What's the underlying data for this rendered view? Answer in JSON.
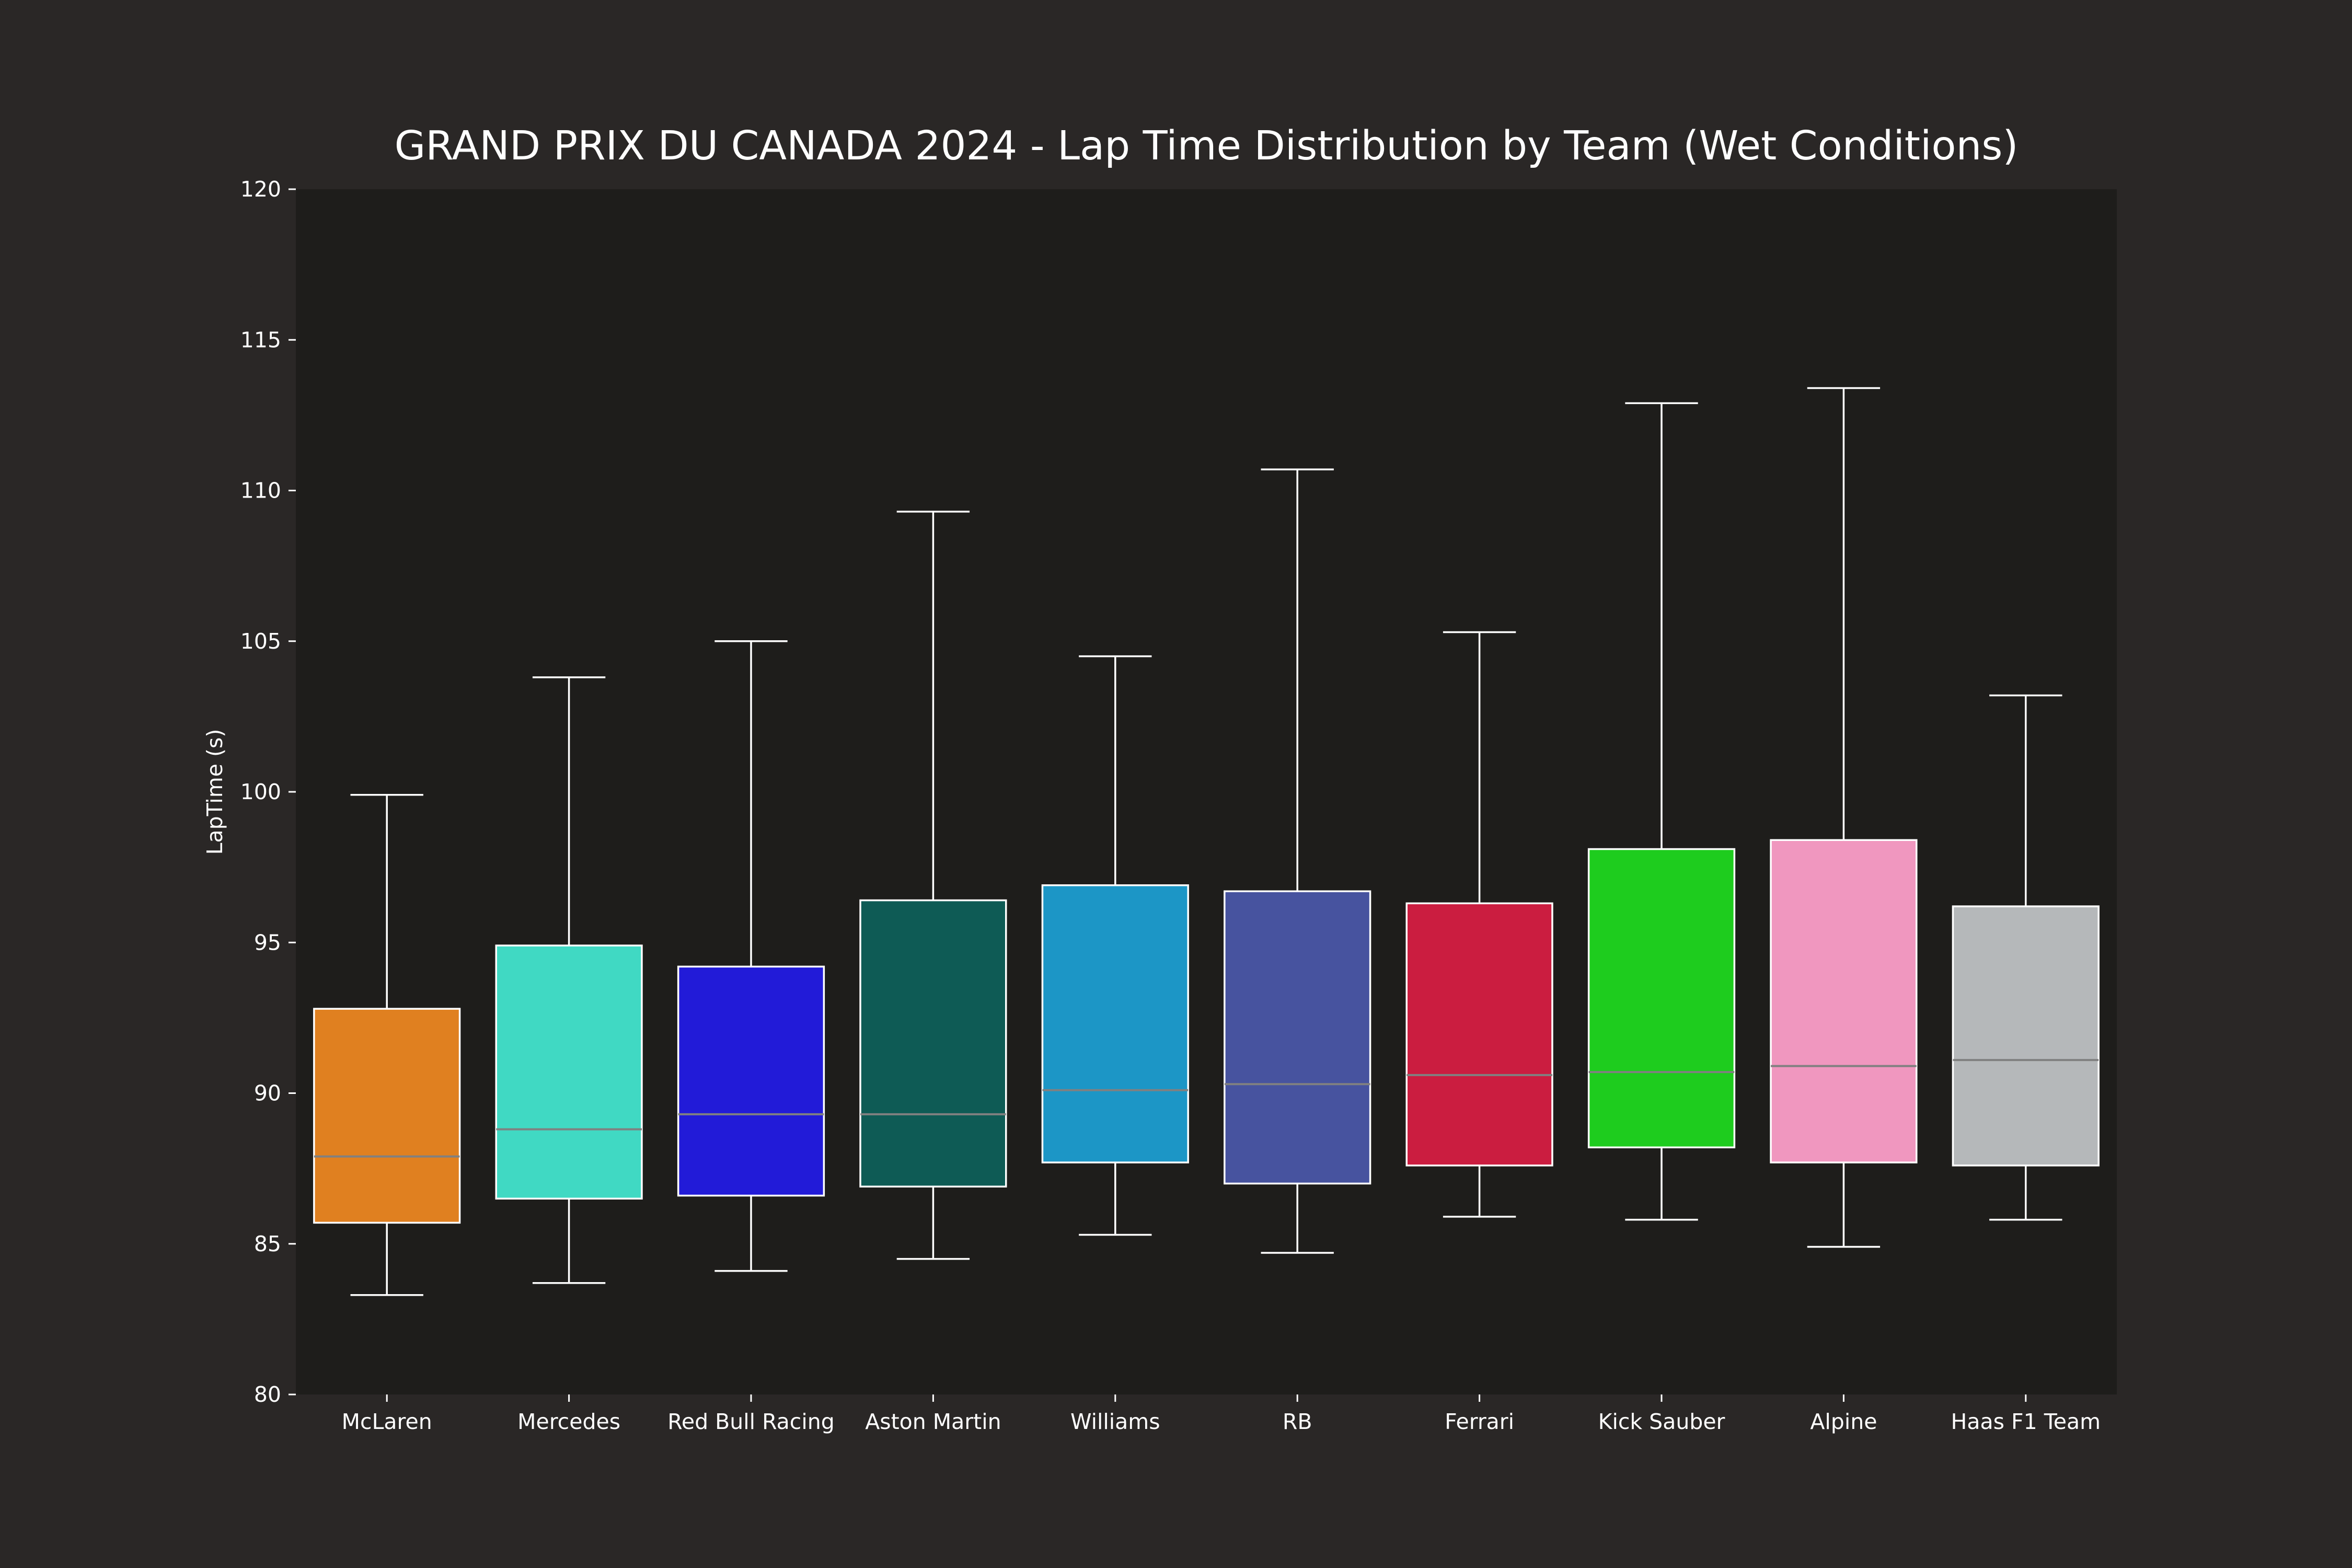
{
  "chart_data": {
    "type": "box",
    "title": "GRAND PRIX DU CANADA 2024 - Lap Time Distribution by Team (Wet Conditions)",
    "xlabel": "",
    "ylabel": "LapTime (s)",
    "ylim": [
      80,
      120
    ],
    "yticks": [
      80,
      85,
      90,
      95,
      100,
      105,
      110,
      115,
      120
    ],
    "grid": false,
    "categories": [
      "McLaren",
      "Mercedes",
      "Red Bull Racing",
      "Aston Martin",
      "Williams",
      "RB",
      "Ferrari",
      "Kick Sauber",
      "Alpine",
      "Haas F1 Team"
    ],
    "boxes": [
      {
        "team": "McLaren",
        "color": "#e08020",
        "whislo": 83.3,
        "q1": 85.7,
        "med": 87.9,
        "q3": 92.8,
        "whishi": 99.9
      },
      {
        "team": "Mercedes",
        "color": "#40d9c3",
        "whislo": 83.7,
        "q1": 86.5,
        "med": 88.8,
        "q3": 94.9,
        "whishi": 103.8
      },
      {
        "team": "Red Bull Racing",
        "color": "#221bd8",
        "whislo": 84.1,
        "q1": 86.6,
        "med": 89.3,
        "q3": 94.2,
        "whishi": 105.0
      },
      {
        "team": "Aston Martin",
        "color": "#0e5b55",
        "whislo": 84.5,
        "q1": 86.9,
        "med": 89.3,
        "q3": 96.4,
        "whishi": 109.3
      },
      {
        "team": "Williams",
        "color": "#1c96c6",
        "whislo": 85.3,
        "q1": 87.7,
        "med": 90.1,
        "q3": 96.9,
        "whishi": 104.5
      },
      {
        "team": "RB",
        "color": "#47539f",
        "whislo": 84.7,
        "q1": 87.0,
        "med": 90.3,
        "q3": 96.7,
        "whishi": 110.7
      },
      {
        "team": "Ferrari",
        "color": "#cb1d40",
        "whislo": 85.9,
        "q1": 87.6,
        "med": 90.6,
        "q3": 96.3,
        "whishi": 105.3
      },
      {
        "team": "Kick Sauber",
        "color": "#1ecc1e",
        "whislo": 85.8,
        "q1": 88.2,
        "med": 90.7,
        "q3": 98.1,
        "whishi": 112.9
      },
      {
        "team": "Alpine",
        "color": "#f097bf",
        "whislo": 84.9,
        "q1": 87.7,
        "med": 90.9,
        "q3": 98.4,
        "whishi": 113.4
      },
      {
        "team": "Haas F1 Team",
        "color": "#b5b8ba",
        "whislo": 85.8,
        "q1": 87.6,
        "med": 91.1,
        "q3": 96.2,
        "whishi": 103.2
      }
    ],
    "colors": {
      "figure_background": "#2a2726",
      "plot_background": "#1e1d1b",
      "text": "#ffffff",
      "whisker": "#ffffff",
      "median": "#808080"
    }
  }
}
